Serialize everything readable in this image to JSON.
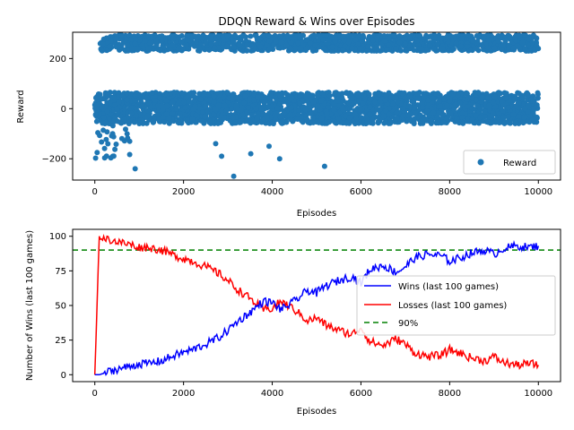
{
  "chart_data": [
    {
      "type": "scatter",
      "title": "DDQN Reward & Wins over Episodes",
      "xlabel": "Episodes",
      "ylabel": "Reward",
      "xlim": [
        -500,
        10500
      ],
      "ylim": [
        -285,
        305
      ],
      "xticks": [
        0,
        2000,
        4000,
        6000,
        8000,
        10000
      ],
      "yticks": [
        -200,
        0,
        200
      ],
      "grid": false,
      "legend_position": "lower-right",
      "series": [
        {
          "name": "Reward",
          "color": "#1f77b4",
          "marker": "circle",
          "distribution": {
            "episodes": [
              0,
              10000
            ],
            "upper_band_approx": [
              230,
              295
            ],
            "lower_band_approx": [
              -60,
              65
            ],
            "outliers_approx": [
              -270,
              -240,
              -230,
              -200,
              -190,
              -180,
              -150,
              -140
            ]
          }
        }
      ]
    },
    {
      "type": "line",
      "xlabel": "Episodes",
      "ylabel": "Number of Wins (last 100 games)",
      "xlim": [
        -500,
        10500
      ],
      "ylim": [
        -5,
        105
      ],
      "xticks": [
        0,
        2000,
        4000,
        6000,
        8000,
        10000
      ],
      "yticks": [
        0,
        25,
        50,
        75,
        100
      ],
      "grid": false,
      "legend_position": "center-right",
      "x": [
        0,
        100,
        300,
        500,
        800,
        1000,
        1200,
        1500,
        1800,
        2000,
        2200,
        2500,
        2800,
        3000,
        3200,
        3500,
        3800,
        4000,
        4200,
        4500,
        4800,
        5000,
        5200,
        5500,
        5800,
        6000,
        6200,
        6500,
        6800,
        7000,
        7200,
        7500,
        7800,
        8000,
        8200,
        8500,
        8800,
        9000,
        9200,
        9500,
        9800,
        10000
      ],
      "series": [
        {
          "name": "Wins (last 100 games)",
          "color": "#0000ff",
          "values": [
            0,
            0,
            2,
            4,
            6,
            8,
            8,
            10,
            14,
            16,
            18,
            22,
            27,
            32,
            38,
            45,
            53,
            52,
            47,
            53,
            61,
            59,
            64,
            68,
            71,
            66,
            76,
            79,
            74,
            78,
            84,
            87,
            86,
            82,
            84,
            88,
            90,
            87,
            91,
            93,
            92,
            93
          ]
        },
        {
          "name": "Losses (last 100 games)",
          "color": "#ff0000",
          "values": [
            0,
            100,
            98,
            96,
            94,
            92,
            92,
            90,
            86,
            84,
            82,
            78,
            73,
            68,
            62,
            55,
            47,
            48,
            53,
            47,
            39,
            41,
            36,
            32,
            29,
            34,
            24,
            21,
            26,
            22,
            16,
            13,
            14,
            18,
            16,
            12,
            10,
            13,
            9,
            7,
            8,
            7
          ]
        },
        {
          "name": "90%",
          "color": "#008000",
          "style": "dashed",
          "constant": 90
        }
      ]
    }
  ]
}
